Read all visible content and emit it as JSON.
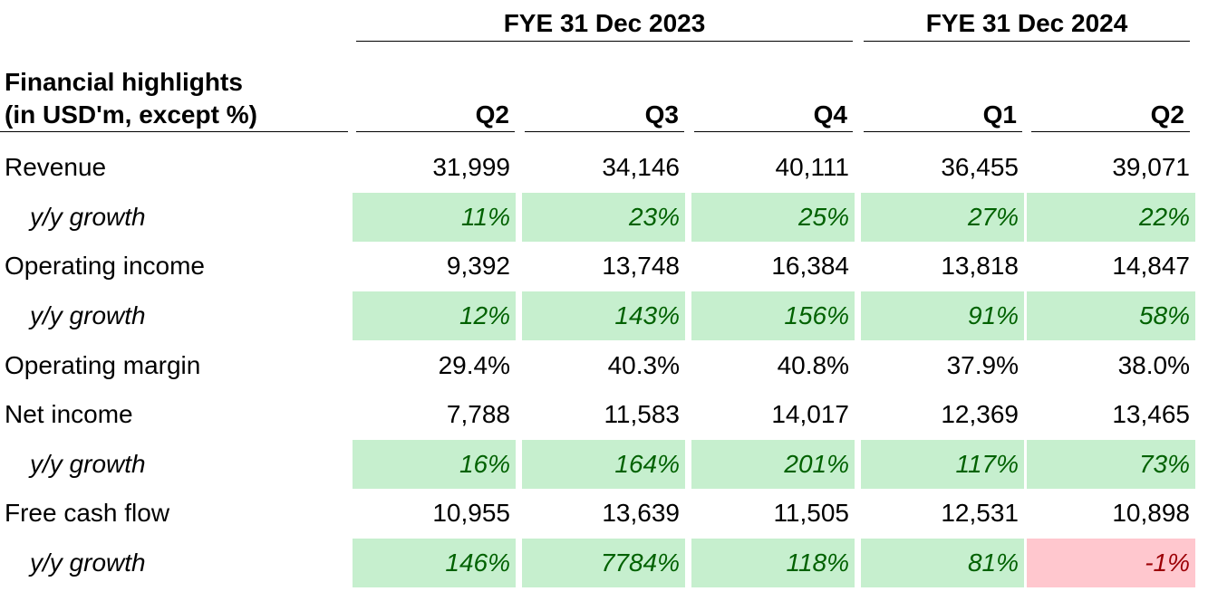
{
  "table": {
    "title_line1": "Financial highlights",
    "title_line2": "(in USD'm, except %)",
    "year_groups": [
      {
        "label": "FYE 31 Dec 2023"
      },
      {
        "label": "FYE 31 Dec 2024"
      }
    ],
    "quarters": [
      "Q2",
      "Q3",
      "Q4",
      "Q1",
      "Q2"
    ],
    "rows": [
      {
        "label": "Revenue",
        "type": "value",
        "values": [
          "31,999",
          "34,146",
          "40,111",
          "36,455",
          "39,071"
        ]
      },
      {
        "label": "y/y growth",
        "type": "growth",
        "values": [
          "11%",
          "23%",
          "25%",
          "27%",
          "22%"
        ],
        "signs": [
          "pos",
          "pos",
          "pos",
          "pos",
          "pos"
        ]
      },
      {
        "label": "Operating income",
        "type": "value",
        "values": [
          "9,392",
          "13,748",
          "16,384",
          "13,818",
          "14,847"
        ]
      },
      {
        "label": "y/y growth",
        "type": "growth",
        "values": [
          "12%",
          "143%",
          "156%",
          "91%",
          "58%"
        ],
        "signs": [
          "pos",
          "pos",
          "pos",
          "pos",
          "pos"
        ]
      },
      {
        "label": "Operating margin",
        "type": "value",
        "values": [
          "29.4%",
          "40.3%",
          "40.8%",
          "37.9%",
          "38.0%"
        ]
      },
      {
        "label": "Net income",
        "type": "value",
        "values": [
          "7,788",
          "11,583",
          "14,017",
          "12,369",
          "13,465"
        ]
      },
      {
        "label": "y/y growth",
        "type": "growth",
        "values": [
          "16%",
          "164%",
          "201%",
          "117%",
          "73%"
        ],
        "signs": [
          "pos",
          "pos",
          "pos",
          "pos",
          "pos"
        ]
      },
      {
        "label": "Free cash flow",
        "type": "value",
        "values": [
          "10,955",
          "13,639",
          "11,505",
          "12,531",
          "10,898"
        ]
      },
      {
        "label": "y/y growth",
        "type": "growth",
        "values": [
          "146%",
          "7784%",
          "118%",
          "81%",
          "-1%"
        ],
        "signs": [
          "pos",
          "pos",
          "pos",
          "pos",
          "neg"
        ]
      }
    ]
  },
  "colors": {
    "positive_fill": "#c6efce",
    "positive_text": "#006100",
    "negative_fill": "#ffc7ce",
    "negative_text": "#9c0006"
  }
}
